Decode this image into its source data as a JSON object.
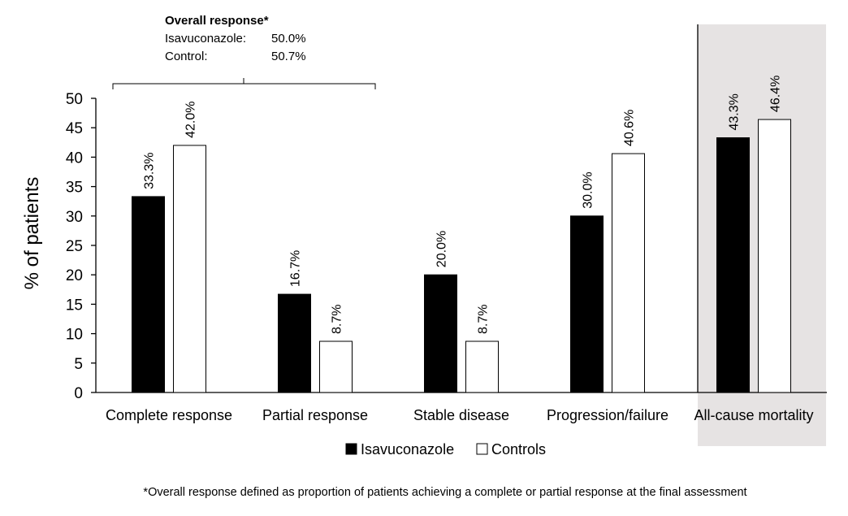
{
  "chart_data": {
    "type": "bar",
    "ylabel": "% of patients",
    "ylim": [
      0,
      50
    ],
    "yticks": [
      0,
      5,
      10,
      15,
      20,
      25,
      30,
      35,
      40,
      45,
      50
    ],
    "categories": [
      "Complete response",
      "Partial response",
      "Stable disease",
      "Progression/failure",
      "All-cause mortality"
    ],
    "series": [
      {
        "name": "Isavuconazole",
        "color": "#000000",
        "values": [
          33.3,
          16.7,
          20.0,
          30.0,
          43.3
        ],
        "labels": [
          "33.3%",
          "16.7%",
          "20.0%",
          "30.0%",
          "43.3%"
        ]
      },
      {
        "name": "Controls",
        "color": "#ffffff",
        "values": [
          42.0,
          8.7,
          8.7,
          40.6,
          46.4
        ],
        "labels": [
          "42.0%",
          "8.7%",
          "8.7%",
          "40.6%",
          "46.4%"
        ]
      }
    ],
    "highlighted_category": "All-cause mortality",
    "highlight_color": "#e6e3e3",
    "grid": false,
    "legend_position": "bottom",
    "annotation": {
      "title": "Overall response*",
      "rows": [
        {
          "label": "Isavuconazole:",
          "value": "50.0%"
        },
        {
          "label": "Control:",
          "value": "50.7%"
        }
      ]
    },
    "footnote": "*Overall response defined as proportion of patients achieving a complete or partial response at the final assessment"
  }
}
